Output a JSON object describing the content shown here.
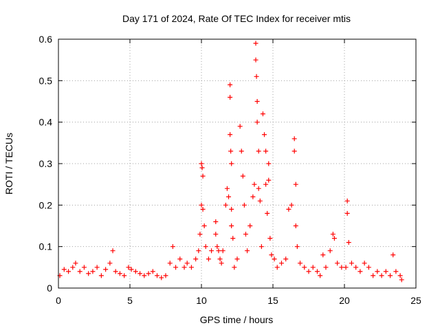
{
  "chart_data": {
    "type": "scatter",
    "title": "Day 171 of 2024, Rate Of TEC Index for receiver mtis",
    "xlabel": "GPS time / hours",
    "ylabel": "ROTI / TECUs",
    "xlim": [
      0,
      25
    ],
    "ylim": [
      0,
      0.6
    ],
    "xticks": [
      0,
      5,
      10,
      15,
      20,
      25
    ],
    "yticks": [
      0,
      0.1,
      0.2,
      0.3,
      0.4,
      0.5,
      0.6
    ],
    "grid": true,
    "marker": "+",
    "marker_color": "#ff0000",
    "series": [
      {
        "name": "ROTI",
        "x": [
          0.1,
          0.4,
          0.7,
          1.0,
          1.2,
          1.5,
          1.8,
          2.1,
          2.4,
          2.7,
          3.0,
          3.3,
          3.6,
          3.8,
          4.0,
          4.3,
          4.6,
          4.9,
          5.1,
          5.4,
          5.7,
          6.0,
          6.3,
          6.6,
          6.9,
          7.2,
          7.5,
          7.8,
          8.0,
          8.2,
          8.5,
          8.8,
          9.0,
          9.3,
          9.6,
          9.8,
          9.9,
          10.0,
          10.0,
          10.05,
          10.1,
          10.1,
          10.2,
          10.3,
          10.5,
          10.7,
          11.0,
          11.0,
          11.1,
          11.2,
          11.3,
          11.4,
          11.5,
          11.7,
          11.8,
          11.9,
          12.0,
          12.0,
          12.0,
          12.05,
          12.1,
          12.1,
          12.1,
          12.2,
          12.3,
          12.5,
          12.7,
          12.8,
          12.9,
          13.0,
          13.1,
          13.2,
          13.4,
          13.6,
          13.7,
          13.8,
          13.8,
          13.85,
          13.9,
          13.9,
          14.0,
          14.0,
          14.1,
          14.2,
          14.3,
          14.4,
          14.5,
          14.5,
          14.6,
          14.7,
          14.7,
          14.8,
          14.9,
          15.1,
          15.3,
          15.6,
          15.9,
          16.1,
          16.3,
          16.5,
          16.5,
          16.6,
          16.6,
          16.7,
          16.9,
          17.2,
          17.5,
          17.8,
          18.1,
          18.3,
          18.5,
          18.7,
          19.0,
          19.2,
          19.3,
          19.5,
          19.8,
          20.1,
          20.2,
          20.2,
          20.3,
          20.5,
          20.8,
          21.1,
          21.4,
          21.7,
          22.0,
          22.3,
          22.6,
          22.9,
          23.2,
          23.4,
          23.6,
          23.9,
          24.0
        ],
        "y": [
          0.03,
          0.045,
          0.04,
          0.05,
          0.06,
          0.04,
          0.05,
          0.035,
          0.04,
          0.05,
          0.03,
          0.045,
          0.06,
          0.09,
          0.04,
          0.035,
          0.03,
          0.05,
          0.045,
          0.04,
          0.035,
          0.03,
          0.035,
          0.04,
          0.03,
          0.025,
          0.03,
          0.06,
          0.1,
          0.05,
          0.07,
          0.05,
          0.06,
          0.05,
          0.07,
          0.09,
          0.13,
          0.2,
          0.3,
          0.29,
          0.27,
          0.19,
          0.15,
          0.1,
          0.07,
          0.09,
          0.16,
          0.13,
          0.1,
          0.09,
          0.07,
          0.06,
          0.09,
          0.2,
          0.24,
          0.22,
          0.49,
          0.46,
          0.37,
          0.33,
          0.3,
          0.19,
          0.15,
          0.12,
          0.05,
          0.07,
          0.39,
          0.33,
          0.27,
          0.2,
          0.13,
          0.09,
          0.15,
          0.22,
          0.25,
          0.59,
          0.55,
          0.51,
          0.45,
          0.4,
          0.33,
          0.24,
          0.21,
          0.1,
          0.42,
          0.37,
          0.33,
          0.25,
          0.18,
          0.3,
          0.26,
          0.12,
          0.08,
          0.07,
          0.05,
          0.06,
          0.07,
          0.19,
          0.2,
          0.36,
          0.33,
          0.25,
          0.15,
          0.1,
          0.06,
          0.05,
          0.04,
          0.05,
          0.04,
          0.03,
          0.08,
          0.05,
          0.09,
          0.13,
          0.12,
          0.06,
          0.05,
          0.05,
          0.21,
          0.18,
          0.11,
          0.06,
          0.05,
          0.04,
          0.06,
          0.05,
          0.03,
          0.04,
          0.03,
          0.04,
          0.03,
          0.08,
          0.04,
          0.03,
          0.02
        ]
      }
    ]
  }
}
